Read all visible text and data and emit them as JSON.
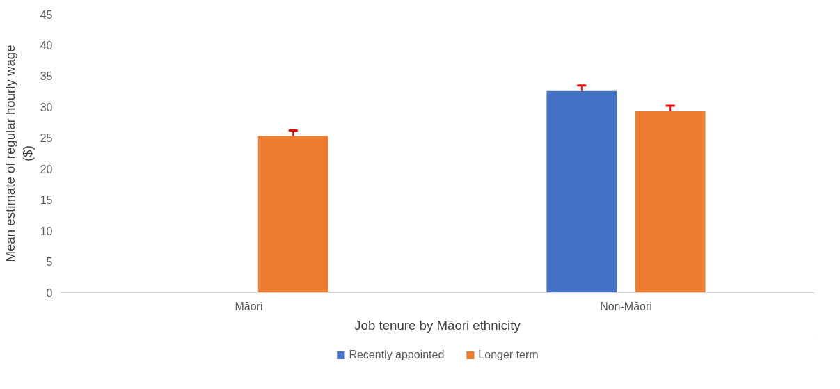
{
  "chart_data": {
    "type": "bar",
    "xlabel": "Job tenure by Māori ethnicity",
    "ylabel": "Mean estimate of regular hourly wage ($)",
    "categories": [
      "Māori",
      "Non-Māori"
    ],
    "series": [
      {
        "name": "Recently appointed",
        "color": "#4472c4",
        "values": [
          null,
          32.6
        ],
        "errors": [
          null,
          [
            32.6,
            33.5
          ]
        ]
      },
      {
        "name": "Longer term",
        "color": "#ed7d31",
        "values": [
          25.3,
          29.3
        ],
        "errors": [
          [
            25.3,
            26.2
          ],
          [
            29.3,
            30.2
          ]
        ]
      }
    ],
    "ylim": [
      0,
      45
    ],
    "yticks": [
      0,
      5,
      10,
      15,
      20,
      25,
      30,
      35,
      40,
      45
    ],
    "grid": false,
    "legend": "bottom"
  }
}
